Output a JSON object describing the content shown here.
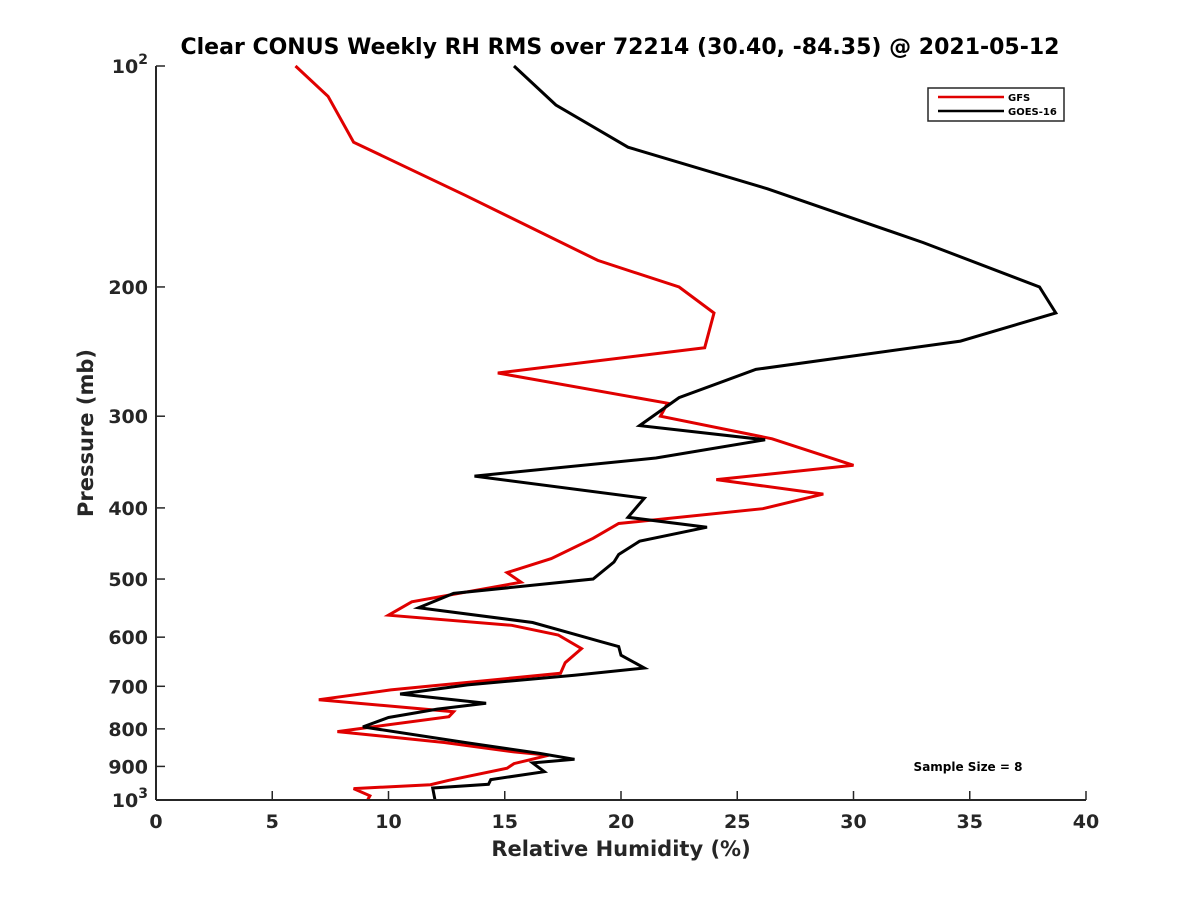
{
  "chart_data": {
    "type": "line",
    "title": "Clear CONUS Weekly RH RMS over 72214 (30.40, -84.35) @ 2021-05-12",
    "xlabel": "Relative Humidity (%)",
    "ylabel": "Pressure (mb)",
    "xlim": [
      0,
      40
    ],
    "ylim": [
      100,
      1000
    ],
    "yscale": "log",
    "yreversed": true,
    "x_ticks": [
      {
        "value": 0,
        "label": "0"
      },
      {
        "value": 5,
        "label": "5"
      },
      {
        "value": 10,
        "label": "10"
      },
      {
        "value": 15,
        "label": "15"
      },
      {
        "value": 20,
        "label": "20"
      },
      {
        "value": 25,
        "label": "25"
      },
      {
        "value": 30,
        "label": "30"
      },
      {
        "value": 35,
        "label": "35"
      },
      {
        "value": 40,
        "label": "40"
      }
    ],
    "y_ticks": [
      {
        "value": 100,
        "base": "10",
        "exp": "2"
      },
      {
        "value": 200,
        "label": "200"
      },
      {
        "value": 300,
        "label": "300"
      },
      {
        "value": 400,
        "label": "400"
      },
      {
        "value": 500,
        "label": "500"
      },
      {
        "value": 600,
        "label": "600"
      },
      {
        "value": 700,
        "label": "700"
      },
      {
        "value": 800,
        "label": "800"
      },
      {
        "value": 900,
        "label": "900"
      },
      {
        "value": 1000,
        "base": "10",
        "exp": "3"
      }
    ],
    "legend_position": "top-right",
    "annotation": "Sample Size = 8",
    "series": [
      {
        "name": "GFS",
        "color": "#e00000",
        "points": [
          [
            6.0,
            100
          ],
          [
            7.4,
            110
          ],
          [
            8.5,
            127
          ],
          [
            13.3,
            150
          ],
          [
            19.0,
            184
          ],
          [
            22.5,
            200
          ],
          [
            24.0,
            217
          ],
          [
            23.6,
            242
          ],
          [
            14.7,
            262
          ],
          [
            22.0,
            288
          ],
          [
            21.7,
            300
          ],
          [
            26.5,
            322
          ],
          [
            30.0,
            350
          ],
          [
            24.1,
            366
          ],
          [
            28.7,
            383
          ],
          [
            26.1,
            401
          ],
          [
            19.9,
            420
          ],
          [
            18.8,
            440
          ],
          [
            17.0,
            469
          ],
          [
            15.1,
            490
          ],
          [
            15.7,
            505
          ],
          [
            11.0,
            537
          ],
          [
            10.0,
            560
          ],
          [
            15.3,
            578
          ],
          [
            17.3,
            596
          ],
          [
            18.3,
            622
          ],
          [
            17.6,
            650
          ],
          [
            17.4,
            672
          ],
          [
            10.1,
            708
          ],
          [
            7.0,
            730
          ],
          [
            12.8,
            758
          ],
          [
            12.6,
            770
          ],
          [
            7.8,
            807
          ],
          [
            12.4,
            835
          ],
          [
            15.4,
            860
          ],
          [
            16.9,
            869
          ],
          [
            15.4,
            892
          ],
          [
            15.1,
            905
          ],
          [
            12.6,
            940
          ],
          [
            11.8,
            953
          ],
          [
            8.5,
            965
          ],
          [
            9.2,
            987
          ],
          [
            9.1,
            1000
          ]
        ]
      },
      {
        "name": "GOES-16",
        "color": "#000000",
        "points": [
          [
            15.4,
            100
          ],
          [
            17.2,
            113
          ],
          [
            20.3,
            129
          ],
          [
            26.3,
            147
          ],
          [
            33.0,
            174
          ],
          [
            38.0,
            200
          ],
          [
            38.7,
            217
          ],
          [
            34.6,
            237
          ],
          [
            25.8,
            259
          ],
          [
            22.5,
            283
          ],
          [
            20.8,
            309
          ],
          [
            26.2,
            323
          ],
          [
            21.5,
            342
          ],
          [
            13.7,
            362
          ],
          [
            21.0,
            388
          ],
          [
            20.3,
            412
          ],
          [
            23.7,
            425
          ],
          [
            20.8,
            444
          ],
          [
            19.9,
            463
          ],
          [
            19.7,
            474
          ],
          [
            18.8,
            500
          ],
          [
            12.8,
            523
          ],
          [
            11.3,
            547
          ],
          [
            16.2,
            573
          ],
          [
            19.1,
            608
          ],
          [
            19.9,
            618
          ],
          [
            20.0,
            635
          ],
          [
            21.0,
            661
          ],
          [
            18.0,
            676
          ],
          [
            13.4,
            697
          ],
          [
            10.5,
            717
          ],
          [
            14.2,
            738
          ],
          [
            12.1,
            752
          ],
          [
            10.0,
            772
          ],
          [
            8.9,
            795
          ],
          [
            13.4,
            836
          ],
          [
            16.5,
            864
          ],
          [
            18.0,
            880
          ],
          [
            16.2,
            890
          ],
          [
            16.7,
            915
          ],
          [
            14.4,
            938
          ],
          [
            14.3,
            952
          ],
          [
            11.9,
            963
          ],
          [
            12.0,
            1000
          ]
        ]
      }
    ]
  }
}
